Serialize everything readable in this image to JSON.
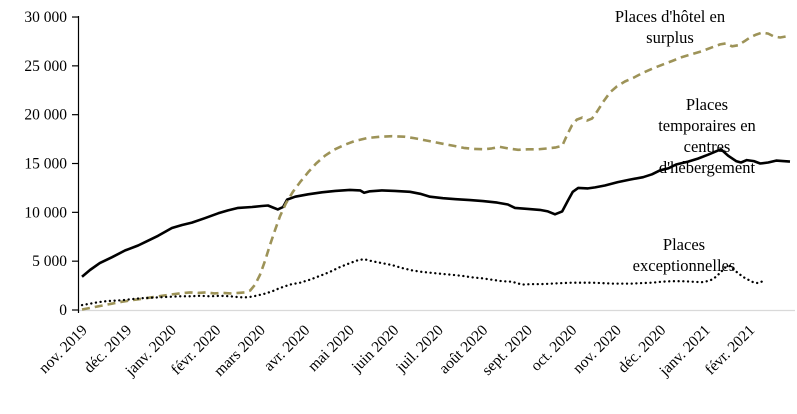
{
  "chart_data": {
    "type": "line",
    "title": "",
    "grid": false,
    "legend_position": "annotations-on-chart",
    "colors": {
      "hotel_surplus_line": "#9d9358",
      "temporaires_line": "#000000",
      "exceptionnelles_line": "#000000",
      "y_axis": "#000000",
      "x_axis_line": "#d9d9d9",
      "text": "#000000",
      "background": "#ffffff"
    },
    "x_axis": {
      "unit": "month",
      "tick_labels": [
        "nov. 2019",
        "déc. 2019",
        "janv. 2020",
        "févr. 2020",
        "mars 2020",
        "avr. 2020",
        "mai 2020",
        "juin 2020",
        "juil. 2020",
        "août 2020",
        "sept. 2020",
        "oct. 2020",
        "nov. 2020",
        "déc. 2020",
        "janv. 2021",
        "févr. 2021"
      ]
    },
    "y_axis": {
      "min": 0,
      "max": 30000,
      "tick_step": 5000,
      "tick_labels": [
        "0",
        "5 000",
        "10 000",
        "15 000",
        "20 000",
        "25 000",
        "30 000"
      ]
    },
    "annotations": [
      {
        "id": "hotel-surplus",
        "lines": [
          "Places d'hôtel en",
          "surplus"
        ]
      },
      {
        "id": "temporaires",
        "lines": [
          "Places",
          "temporaires en",
          "centres",
          "d'hébergement"
        ]
      },
      {
        "id": "exceptionnelles",
        "lines": [
          "Places",
          "exceptionnelles"
        ]
      }
    ],
    "series": [
      {
        "id": "temporaires",
        "name": "Places temporaires en centres d'hébergement",
        "style": "solid",
        "color": "#000000",
        "points": [
          [
            0,
            3400
          ],
          [
            0.18,
            4100
          ],
          [
            0.4,
            4800
          ],
          [
            0.67,
            5400
          ],
          [
            0.97,
            6100
          ],
          [
            1.26,
            6600
          ],
          [
            1.42,
            6950
          ],
          [
            1.71,
            7600
          ],
          [
            2.02,
            8400
          ],
          [
            2.25,
            8700
          ],
          [
            2.47,
            8950
          ],
          [
            2.76,
            9400
          ],
          [
            3.06,
            9900
          ],
          [
            3.28,
            10200
          ],
          [
            3.51,
            10450
          ],
          [
            3.82,
            10550
          ],
          [
            4.04,
            10650
          ],
          [
            4.18,
            10700
          ],
          [
            4.29,
            10500
          ],
          [
            4.4,
            10300
          ],
          [
            4.52,
            10550
          ],
          [
            4.61,
            11300
          ],
          [
            4.79,
            11600
          ],
          [
            5.08,
            11850
          ],
          [
            5.39,
            12050
          ],
          [
            5.69,
            12200
          ],
          [
            6.02,
            12300
          ],
          [
            6.25,
            12250
          ],
          [
            6.34,
            12000
          ],
          [
            6.47,
            12150
          ],
          [
            6.74,
            12250
          ],
          [
            7.03,
            12200
          ],
          [
            7.37,
            12100
          ],
          [
            7.6,
            11900
          ],
          [
            7.82,
            11600
          ],
          [
            8.11,
            11450
          ],
          [
            8.4,
            11350
          ],
          [
            8.72,
            11250
          ],
          [
            9.01,
            11150
          ],
          [
            9.33,
            11000
          ],
          [
            9.57,
            10800
          ],
          [
            9.73,
            10450
          ],
          [
            10.02,
            10350
          ],
          [
            10.29,
            10250
          ],
          [
            10.47,
            10100
          ],
          [
            10.63,
            9800
          ],
          [
            10.79,
            10100
          ],
          [
            10.92,
            11200
          ],
          [
            11.03,
            12100
          ],
          [
            11.15,
            12500
          ],
          [
            11.37,
            12450
          ],
          [
            11.53,
            12550
          ],
          [
            11.75,
            12750
          ],
          [
            12.04,
            13100
          ],
          [
            12.31,
            13350
          ],
          [
            12.61,
            13600
          ],
          [
            12.81,
            13900
          ],
          [
            12.99,
            14300
          ],
          [
            13.17,
            14500
          ],
          [
            13.35,
            14900
          ],
          [
            13.62,
            15200
          ],
          [
            13.84,
            15500
          ],
          [
            14.07,
            15900
          ],
          [
            14.25,
            16250
          ],
          [
            14.36,
            16450
          ],
          [
            14.52,
            15800
          ],
          [
            14.7,
            15250
          ],
          [
            14.81,
            15100
          ],
          [
            14.94,
            15350
          ],
          [
            15.1,
            15250
          ],
          [
            15.24,
            15000
          ],
          [
            15.42,
            15100
          ],
          [
            15.6,
            15300
          ],
          [
            15.75,
            15250
          ],
          [
            15.91,
            15200
          ]
        ]
      },
      {
        "id": "hotel_surplus",
        "name": "Places d'hôtel en surplus",
        "style": "dashed",
        "color": "#9d9358",
        "points": [
          [
            0,
            50
          ],
          [
            0.22,
            250
          ],
          [
            0.45,
            450
          ],
          [
            0.67,
            650
          ],
          [
            0.9,
            850
          ],
          [
            1.12,
            1000
          ],
          [
            1.35,
            1150
          ],
          [
            1.57,
            1300
          ],
          [
            1.8,
            1450
          ],
          [
            2.02,
            1600
          ],
          [
            2.2,
            1700
          ],
          [
            2.43,
            1800
          ],
          [
            2.61,
            1750
          ],
          [
            2.79,
            1800
          ],
          [
            2.97,
            1700
          ],
          [
            3.15,
            1750
          ],
          [
            3.33,
            1700
          ],
          [
            3.51,
            1750
          ],
          [
            3.66,
            1800
          ],
          [
            3.78,
            2000
          ],
          [
            3.89,
            2600
          ],
          [
            4,
            3600
          ],
          [
            4.11,
            5000
          ],
          [
            4.22,
            6600
          ],
          [
            4.34,
            8200
          ],
          [
            4.45,
            9600
          ],
          [
            4.58,
            10900
          ],
          [
            4.74,
            12100
          ],
          [
            4.9,
            13100
          ],
          [
            5.08,
            14100
          ],
          [
            5.26,
            15000
          ],
          [
            5.46,
            15800
          ],
          [
            5.66,
            16400
          ],
          [
            5.89,
            16900
          ],
          [
            6.13,
            17300
          ],
          [
            6.4,
            17600
          ],
          [
            6.7,
            17750
          ],
          [
            6.97,
            17800
          ],
          [
            7.24,
            17750
          ],
          [
            7.46,
            17600
          ],
          [
            7.69,
            17400
          ],
          [
            7.91,
            17200
          ],
          [
            8.13,
            17000
          ],
          [
            8.36,
            16800
          ],
          [
            8.58,
            16600
          ],
          [
            8.81,
            16500
          ],
          [
            9.03,
            16450
          ],
          [
            9.21,
            16550
          ],
          [
            9.39,
            16700
          ],
          [
            9.57,
            16550
          ],
          [
            9.8,
            16400
          ],
          [
            10.02,
            16450
          ],
          [
            10.25,
            16450
          ],
          [
            10.47,
            16550
          ],
          [
            10.65,
            16650
          ],
          [
            10.79,
            16800
          ],
          [
            10.9,
            17900
          ],
          [
            11.01,
            18900
          ],
          [
            11.12,
            19500
          ],
          [
            11.24,
            19700
          ],
          [
            11.35,
            19400
          ],
          [
            11.46,
            19600
          ],
          [
            11.57,
            20300
          ],
          [
            11.71,
            21300
          ],
          [
            11.87,
            22300
          ],
          [
            12.02,
            22900
          ],
          [
            12.2,
            23400
          ],
          [
            12.4,
            23800
          ],
          [
            12.61,
            24300
          ],
          [
            12.81,
            24700
          ],
          [
            13.03,
            25100
          ],
          [
            13.26,
            25500
          ],
          [
            13.48,
            25900
          ],
          [
            13.71,
            26200
          ],
          [
            13.93,
            26500
          ],
          [
            14.16,
            26900
          ],
          [
            14.34,
            27200
          ],
          [
            14.47,
            27300
          ],
          [
            14.61,
            27000
          ],
          [
            14.74,
            27100
          ],
          [
            14.88,
            27500
          ],
          [
            15.01,
            27900
          ],
          [
            15.15,
            28200
          ],
          [
            15.28,
            28400
          ],
          [
            15.42,
            28300
          ],
          [
            15.55,
            28000
          ],
          [
            15.69,
            27900
          ],
          [
            15.8,
            28000
          ],
          [
            15.91,
            28100
          ]
        ]
      },
      {
        "id": "exceptionnelles",
        "name": "Places exceptionnelles",
        "style": "dotted",
        "color": "#000000",
        "points": [
          [
            0,
            500
          ],
          [
            0.18,
            650
          ],
          [
            0.36,
            800
          ],
          [
            0.54,
            900
          ],
          [
            0.72,
            950
          ],
          [
            0.9,
            1000
          ],
          [
            1.08,
            1100
          ],
          [
            1.3,
            1200
          ],
          [
            1.53,
            1250
          ],
          [
            1.75,
            1300
          ],
          [
            1.98,
            1350
          ],
          [
            2.2,
            1400
          ],
          [
            2.43,
            1400
          ],
          [
            2.65,
            1450
          ],
          [
            2.88,
            1400
          ],
          [
            3.1,
            1450
          ],
          [
            3.33,
            1400
          ],
          [
            3.55,
            1300
          ],
          [
            3.73,
            1300
          ],
          [
            3.91,
            1450
          ],
          [
            4.09,
            1650
          ],
          [
            4.27,
            1900
          ],
          [
            4.45,
            2250
          ],
          [
            4.67,
            2600
          ],
          [
            4.9,
            2800
          ],
          [
            5.12,
            3100
          ],
          [
            5.35,
            3500
          ],
          [
            5.57,
            3900
          ],
          [
            5.8,
            4400
          ],
          [
            6.02,
            4800
          ],
          [
            6.2,
            5100
          ],
          [
            6.34,
            5200
          ],
          [
            6.52,
            5000
          ],
          [
            6.74,
            4800
          ],
          [
            6.97,
            4600
          ],
          [
            7.19,
            4300
          ],
          [
            7.42,
            4050
          ],
          [
            7.64,
            3900
          ],
          [
            7.87,
            3800
          ],
          [
            8.09,
            3700
          ],
          [
            8.31,
            3600
          ],
          [
            8.54,
            3500
          ],
          [
            8.76,
            3350
          ],
          [
            8.99,
            3250
          ],
          [
            9.21,
            3100
          ],
          [
            9.44,
            2950
          ],
          [
            9.66,
            2900
          ],
          [
            9.89,
            2600
          ],
          [
            10.11,
            2650
          ],
          [
            10.34,
            2650
          ],
          [
            10.56,
            2700
          ],
          [
            10.79,
            2750
          ],
          [
            11.01,
            2800
          ],
          [
            11.24,
            2800
          ],
          [
            11.46,
            2800
          ],
          [
            11.69,
            2750
          ],
          [
            11.91,
            2700
          ],
          [
            12.13,
            2700
          ],
          [
            12.36,
            2700
          ],
          [
            12.58,
            2750
          ],
          [
            12.81,
            2800
          ],
          [
            13.03,
            2900
          ],
          [
            13.26,
            2950
          ],
          [
            13.48,
            2950
          ],
          [
            13.71,
            2900
          ],
          [
            13.93,
            2850
          ],
          [
            14.11,
            3000
          ],
          [
            14.25,
            3400
          ],
          [
            14.36,
            3900
          ],
          [
            14.47,
            4400
          ],
          [
            14.56,
            4500
          ],
          [
            14.65,
            4100
          ],
          [
            14.74,
            3800
          ],
          [
            14.85,
            3400
          ],
          [
            14.97,
            3100
          ],
          [
            15.08,
            2850
          ],
          [
            15.19,
            2750
          ],
          [
            15.3,
            2950
          ]
        ]
      }
    ]
  }
}
